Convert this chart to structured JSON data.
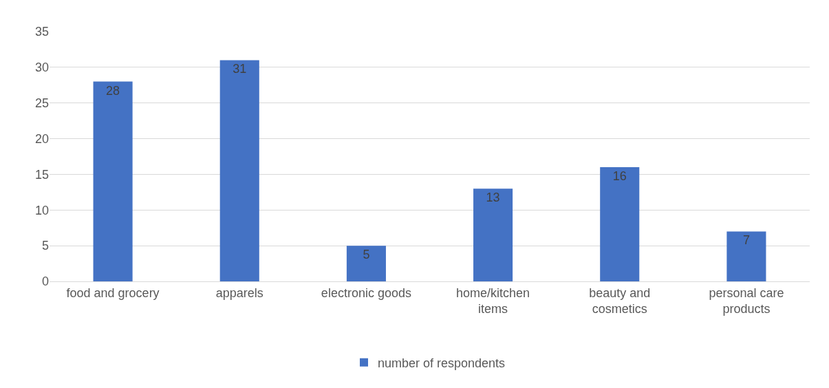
{
  "chart_data": {
    "type": "bar",
    "categories": [
      "food and grocery",
      "apparels",
      "electronic goods",
      "home/kitchen items",
      "beauty and cosmetics",
      "personal care products"
    ],
    "series": [
      {
        "name": "number of respondents",
        "color": "#4472c4",
        "values": [
          28,
          31,
          5,
          13,
          16,
          7
        ]
      }
    ],
    "ylim": [
      0,
      35
    ],
    "yticks": [
      0,
      5,
      10,
      15,
      20,
      25,
      30,
      35
    ],
    "grid": "y",
    "legend": "bottom",
    "data_labels": true
  }
}
